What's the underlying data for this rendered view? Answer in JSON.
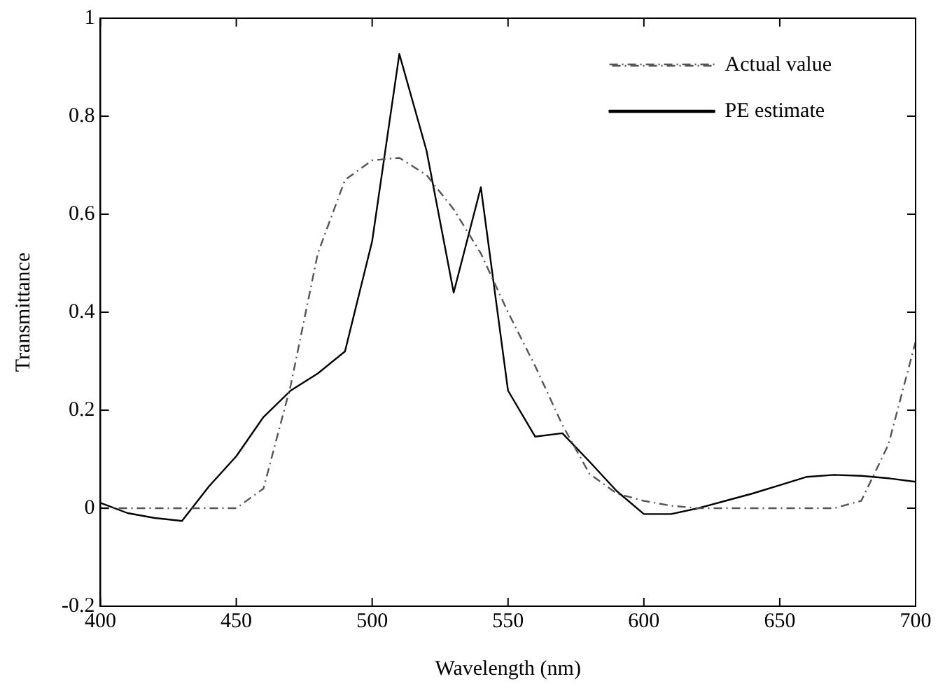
{
  "chart_data": {
    "type": "line",
    "xlabel": "Wavelength (nm)",
    "ylabel": "Transmittance",
    "x": [
      400,
      410,
      420,
      430,
      440,
      450,
      460,
      470,
      480,
      490,
      500,
      510,
      520,
      530,
      540,
      550,
      560,
      570,
      580,
      590,
      600,
      610,
      620,
      630,
      640,
      650,
      660,
      670,
      680,
      690,
      700
    ],
    "series": [
      {
        "name": "Actual value",
        "color": "#555555",
        "line_style": "dashdot",
        "values": [
          0,
          0,
          0,
          0,
          0,
          0,
          0.04,
          0.25,
          0.52,
          0.67,
          0.71,
          0.715,
          0.68,
          0.61,
          0.52,
          0.4,
          0.29,
          0.17,
          0.07,
          0.03,
          0.015,
          0.005,
          0,
          0,
          0,
          0,
          0,
          0,
          0.015,
          0.13,
          0.34
        ]
      },
      {
        "name": "PE estimate",
        "color": "#000000",
        "line_style": "solid",
        "values": [
          0.011,
          -0.01,
          -0.02,
          -0.026,
          0.045,
          0.106,
          0.186,
          0.24,
          0.275,
          0.32,
          0.545,
          0.927,
          0.73,
          0.44,
          0.655,
          0.24,
          0.146,
          0.153,
          0.095,
          0.035,
          -0.012,
          -0.012,
          0,
          0.015,
          0.03,
          0.047,
          0.064,
          0.068,
          0.066,
          0.061,
          0.054
        ]
      }
    ],
    "xlim": [
      400,
      700
    ],
    "xticks": [
      400,
      450,
      500,
      550,
      600,
      650,
      700
    ],
    "ylim": [
      -0.2,
      1
    ],
    "yticks": [
      -0.2,
      0,
      0.2,
      0.4,
      0.6,
      0.8,
      1
    ],
    "grid": false,
    "legend": "top right",
    "marker": "none"
  }
}
